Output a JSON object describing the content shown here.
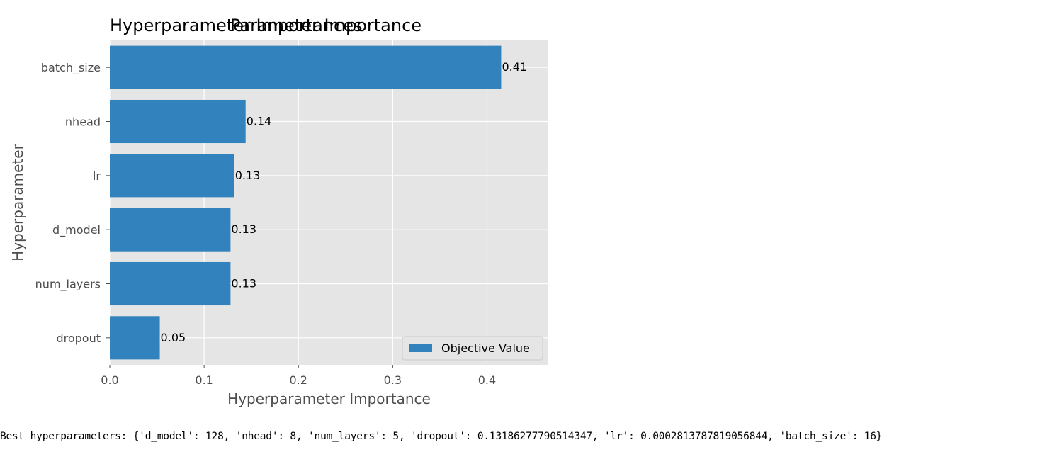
{
  "chart_data": {
    "type": "bar",
    "orientation": "horizontal",
    "titles": [
      "Hyperparameter Importances",
      "Parameter Importance"
    ],
    "xlabel": "Hyperparameter Importance",
    "ylabel": "Hyperparameter",
    "categories": [
      "batch_size",
      "nhead",
      "lr",
      "d_model",
      "num_layers",
      "dropout"
    ],
    "series": [
      {
        "name": "Objective Value",
        "values": [
          0.415,
          0.144,
          0.132,
          0.128,
          0.128,
          0.053
        ],
        "labels": [
          "0.41",
          "0.14",
          "0.13",
          "0.13",
          "0.13",
          "0.05"
        ]
      }
    ],
    "xlim": [
      0,
      0.465
    ],
    "xticks": [
      0.0,
      0.1,
      0.2,
      0.3,
      0.4
    ],
    "xtick_labels": [
      "0.0",
      "0.1",
      "0.2",
      "0.3",
      "0.4"
    ],
    "grid": true,
    "legend_placement": "lower-right",
    "colors": {
      "bar": "#3182bd",
      "plot_background": "#e5e5e5",
      "grid": "#ffffff"
    }
  },
  "output_text": "Best hyperparameters: {'d_model': 128, 'nhead': 8, 'num_layers': 5, 'dropout': 0.13186277790514347, 'lr': 0.0002813787819056844, 'batch_size': 16}"
}
